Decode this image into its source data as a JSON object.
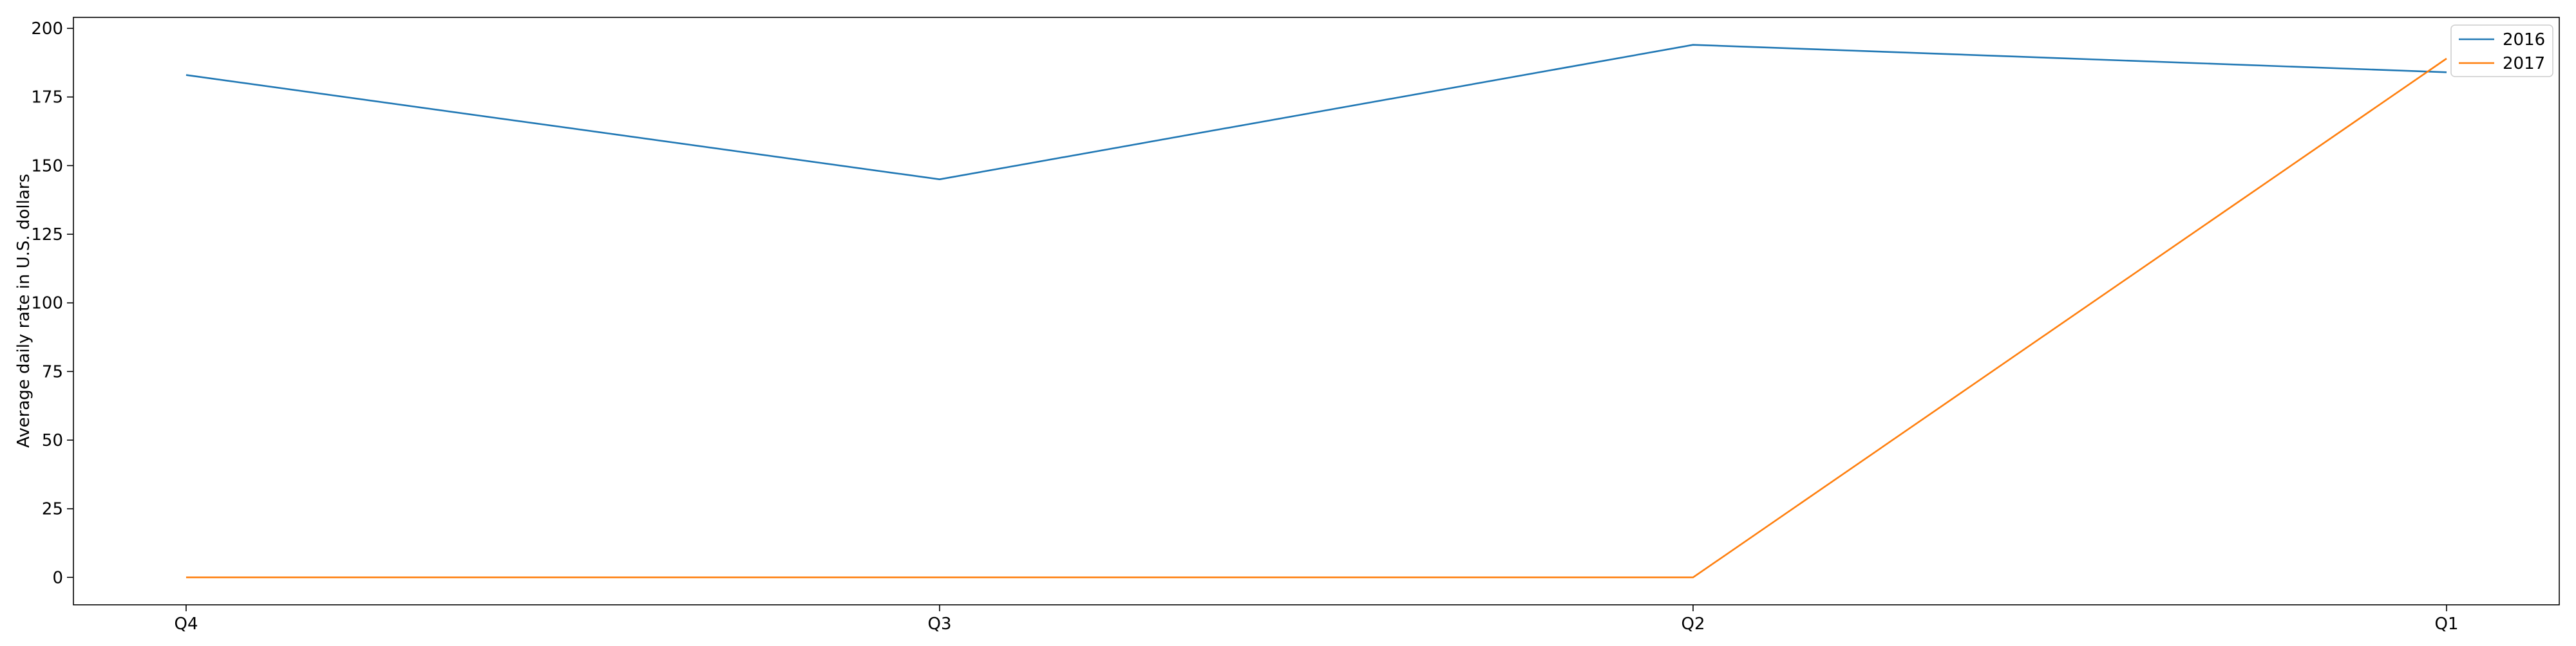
{
  "chart_data": {
    "type": "line",
    "title": "",
    "xlabel": "",
    "ylabel": "Average daily rate in U.S. dollars",
    "categories": [
      "Q4",
      "Q3",
      "Q2",
      "Q1"
    ],
    "series": [
      {
        "name": "2016",
        "values": [
          183,
          145,
          194,
          184
        ],
        "color": "#1f77b4"
      },
      {
        "name": "2017",
        "values": [
          0,
          0,
          0,
          189
        ],
        "color": "#ff7f0e"
      }
    ],
    "yticks": [
      0,
      25,
      50,
      75,
      100,
      125,
      150,
      175,
      200
    ],
    "ylim": [
      -10,
      204
    ],
    "grid": false,
    "legend_position": "top-right"
  }
}
